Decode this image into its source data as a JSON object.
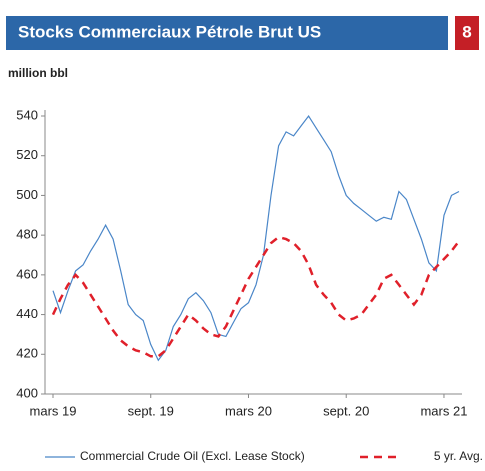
{
  "header": {
    "title": "Stocks Commerciaux Pétrole Brut US",
    "page": "8"
  },
  "chart_data": {
    "type": "line",
    "unit_label": "million bbl",
    "categories": [
      "mars 19",
      null,
      null,
      null,
      null,
      null,
      null,
      null,
      null,
      null,
      null,
      null,
      null,
      "sept. 19",
      null,
      null,
      null,
      null,
      null,
      null,
      null,
      null,
      null,
      null,
      null,
      null,
      "mars 20",
      null,
      null,
      null,
      null,
      null,
      null,
      null,
      null,
      null,
      null,
      null,
      null,
      "sept. 20",
      null,
      null,
      null,
      null,
      null,
      null,
      null,
      null,
      null,
      null,
      null,
      null,
      "mars 21",
      null,
      null
    ],
    "series": [
      {
        "name": "Commercial Crude Oil (Excl. Lease Stock)",
        "color": "#4a86c8",
        "dashed": false,
        "values": [
          452,
          441,
          452,
          462,
          465,
          472,
          478,
          485,
          478,
          462,
          445,
          440,
          437,
          425,
          417,
          422,
          434,
          440,
          448,
          451,
          447,
          441,
          430,
          429,
          436,
          443,
          446,
          455,
          470,
          500,
          525,
          532,
          530,
          535,
          540,
          534,
          528,
          522,
          510,
          500,
          496,
          493,
          490,
          487,
          489,
          488,
          502,
          498,
          488,
          478,
          466,
          462,
          490,
          500,
          502
        ]
      },
      {
        "name": "5 yr. Avg.",
        "color": "#e0202a",
        "dashed": true,
        "values": [
          440,
          448,
          455,
          460,
          456,
          450,
          444,
          438,
          432,
          427,
          424,
          422,
          421,
          419,
          419,
          422,
          428,
          434,
          440,
          437,
          433,
          430,
          429,
          434,
          442,
          450,
          458,
          464,
          470,
          476,
          479,
          478,
          476,
          472,
          465,
          455,
          450,
          446,
          440,
          437,
          438,
          440,
          445,
          450,
          458,
          460,
          455,
          450,
          445,
          450,
          460,
          464,
          468,
          472,
          477
        ]
      }
    ],
    "ylim": [
      400,
      540
    ],
    "yticks": [
      400,
      420,
      440,
      460,
      480,
      500,
      520,
      540
    ]
  }
}
